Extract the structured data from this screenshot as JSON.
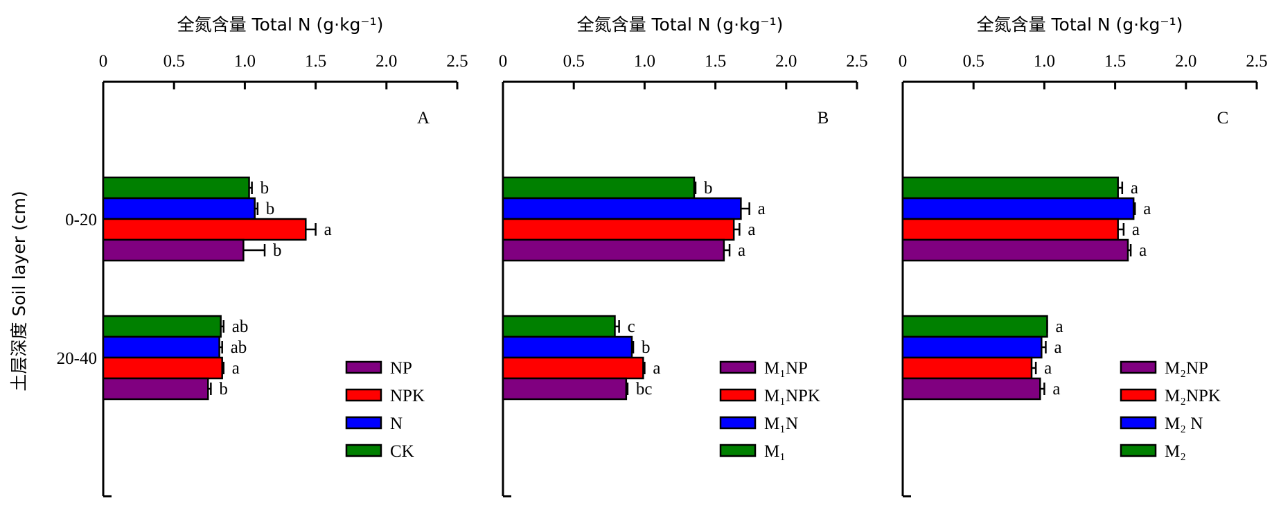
{
  "figure": {
    "y_axis_label": "土层深度 Soil layer (cm)"
  },
  "colors": {
    "purple": "#800080",
    "red": "#ff0000",
    "blue": "#0000ff",
    "green": "#008000"
  },
  "chart_data": [
    {
      "type": "bar",
      "orientation": "horizontal",
      "panel_label": "A",
      "xlabel": "全氮含量 Total N (g·kg⁻¹)",
      "xlim": [
        0,
        2.5
      ],
      "xticks": [
        "0",
        "0.5",
        "1.0",
        "1.5",
        "2.0",
        "2.5"
      ],
      "categories": [
        "0-20",
        "20-40"
      ],
      "series": [
        {
          "name": "CK",
          "color": "#008000",
          "values": [
            1.03,
            0.83
          ],
          "errors": [
            0.02,
            0.02
          ],
          "letters": [
            "b",
            "ab"
          ]
        },
        {
          "name": "N",
          "color": "#0000ff",
          "values": [
            1.07,
            0.82
          ],
          "errors": [
            0.02,
            0.02
          ],
          "letters": [
            "b",
            "ab"
          ]
        },
        {
          "name": "NPK",
          "color": "#ff0000",
          "values": [
            1.43,
            0.84
          ],
          "errors": [
            0.07,
            0.01
          ],
          "letters": [
            "a",
            "a"
          ]
        },
        {
          "name": "NP",
          "color": "#800080",
          "values": [
            0.99,
            0.74
          ],
          "errors": [
            0.15,
            0.02
          ],
          "letters": [
            "b",
            "b"
          ]
        }
      ],
      "legend": [
        {
          "name": "NP",
          "color": "#800080"
        },
        {
          "name": "NPK",
          "color": "#ff0000"
        },
        {
          "name": "N",
          "color": "#0000ff"
        },
        {
          "name": "CK",
          "color": "#008000"
        }
      ]
    },
    {
      "type": "bar",
      "orientation": "horizontal",
      "panel_label": "B",
      "xlabel": "全氮含量 Total N (g·kg⁻¹)",
      "xlim": [
        0,
        2.5
      ],
      "xticks": [
        "0",
        "0.5",
        "1.0",
        "1.5",
        "2.0",
        "2.5"
      ],
      "categories": [
        "0-20",
        "20-40"
      ],
      "series": [
        {
          "name": "M₁",
          "color": "#008000",
          "values": [
            1.35,
            0.79
          ],
          "errors": [
            0.01,
            0.03
          ],
          "letters": [
            "b",
            "c"
          ]
        },
        {
          "name": "M₁N",
          "color": "#0000ff",
          "values": [
            1.68,
            0.91
          ],
          "errors": [
            0.06,
            0.01
          ],
          "letters": [
            "a",
            "b"
          ]
        },
        {
          "name": "M₁NPK",
          "color": "#ff0000",
          "values": [
            1.63,
            0.99
          ],
          "errors": [
            0.04,
            0.01
          ],
          "letters": [
            "a",
            "a"
          ]
        },
        {
          "name": "M₁NP",
          "color": "#800080",
          "values": [
            1.56,
            0.87
          ],
          "errors": [
            0.04,
            0.01
          ],
          "letters": [
            "a",
            "bc"
          ]
        }
      ],
      "legend": [
        {
          "name": "M₁NP",
          "color": "#800080"
        },
        {
          "name": "M₁NPK",
          "color": "#ff0000"
        },
        {
          "name": "M₁N",
          "color": "#0000ff"
        },
        {
          "name": "M₁",
          "color": "#008000"
        }
      ]
    },
    {
      "type": "bar",
      "orientation": "horizontal",
      "panel_label": "C",
      "xlabel": "全氮含量 Total N (g·kg⁻¹)",
      "xlim": [
        0,
        2.5
      ],
      "xticks": [
        "0",
        "0.5",
        "1.0",
        "1.5",
        "2.0",
        "2.5"
      ],
      "categories": [
        "0-20",
        "20-40"
      ],
      "series": [
        {
          "name": "M₂",
          "color": "#008000",
          "values": [
            1.52,
            1.02
          ],
          "errors": [
            0.03,
            0.0
          ],
          "letters": [
            "a",
            "a"
          ]
        },
        {
          "name": "M₂ N",
          "color": "#0000ff",
          "values": [
            1.63,
            0.98
          ],
          "errors": [
            0.01,
            0.03
          ],
          "letters": [
            "a",
            "a"
          ]
        },
        {
          "name": "M₂NPK",
          "color": "#ff0000",
          "values": [
            1.52,
            0.91
          ],
          "errors": [
            0.04,
            0.03
          ],
          "letters": [
            "a",
            "a"
          ]
        },
        {
          "name": "M₂NP",
          "color": "#800080",
          "values": [
            1.59,
            0.97
          ],
          "errors": [
            0.02,
            0.03
          ],
          "letters": [
            "a",
            "a"
          ]
        }
      ],
      "legend": [
        {
          "name": "M₂NP",
          "color": "#800080"
        },
        {
          "name": "M₂NPK",
          "color": "#ff0000"
        },
        {
          "name": "M₂ N",
          "color": "#0000ff"
        },
        {
          "name": "M₂",
          "color": "#008000"
        }
      ]
    }
  ]
}
